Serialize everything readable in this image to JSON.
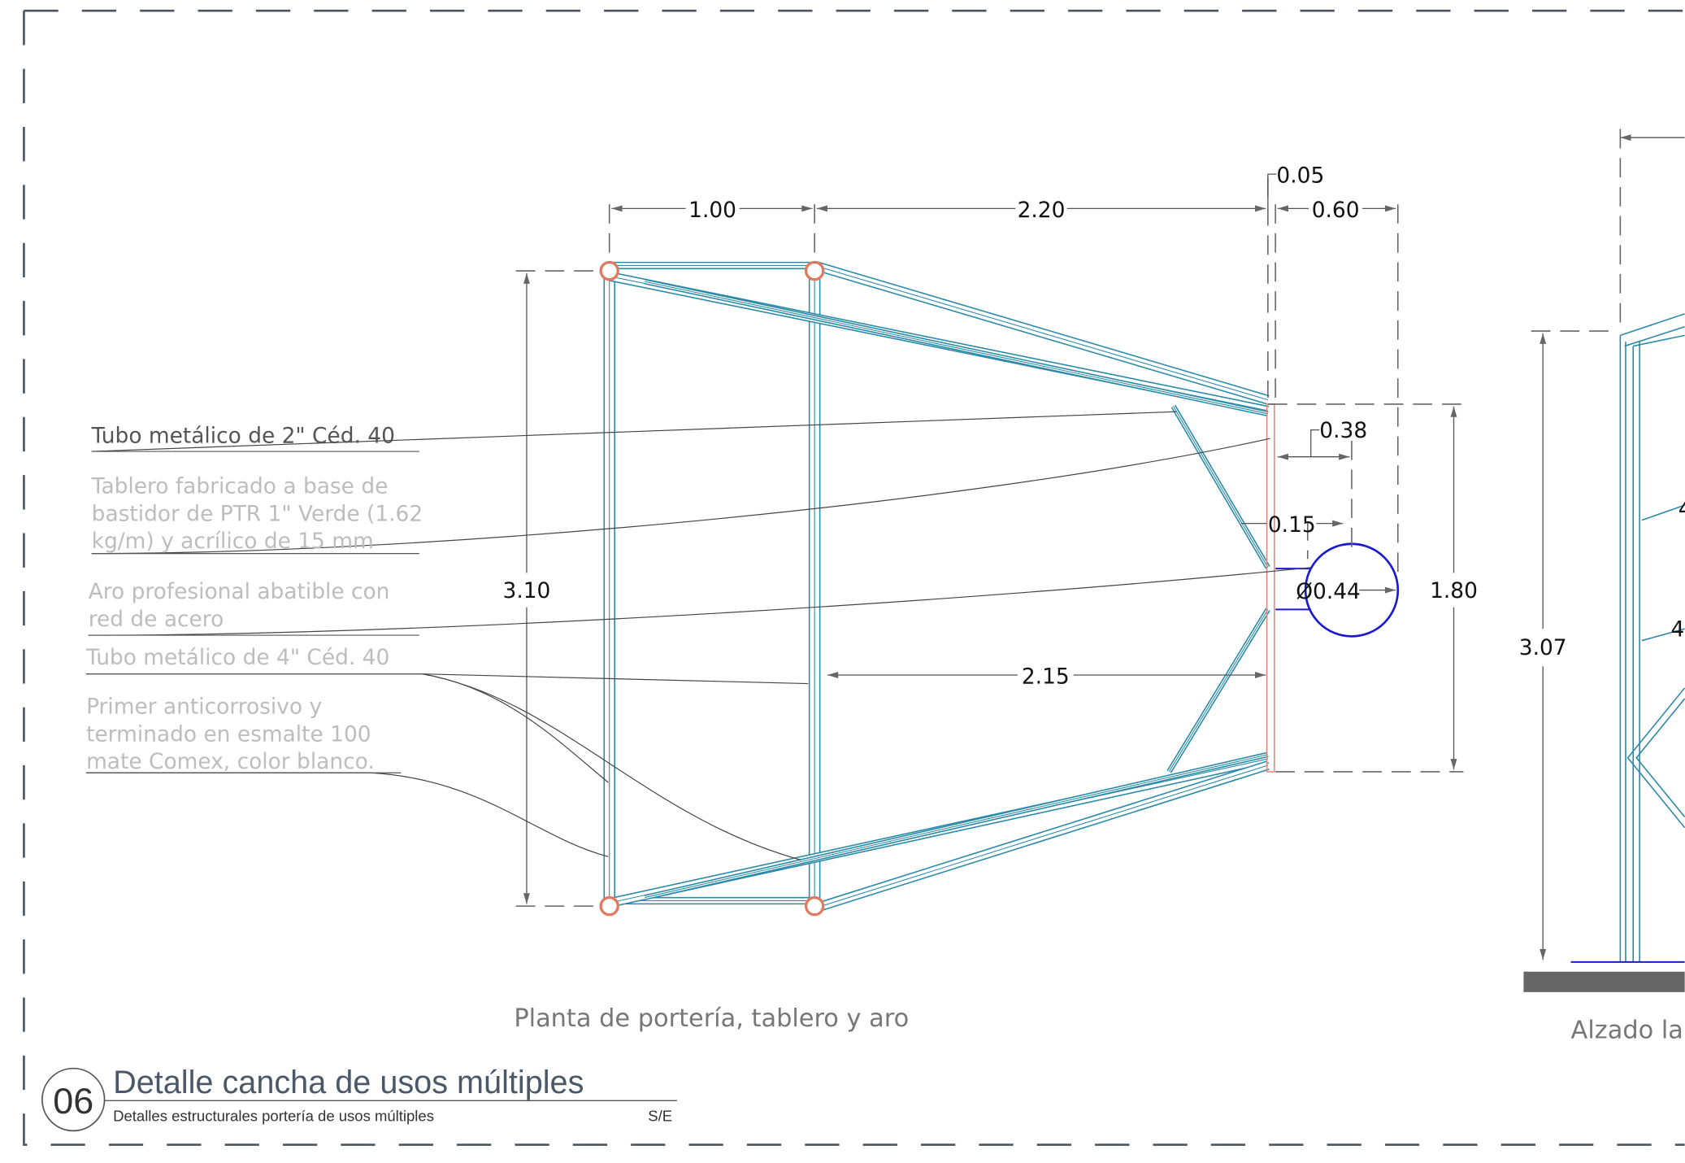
{
  "plan": {
    "caption": "Planta de portería, tablero y aro",
    "dimensions": {
      "d1": "1.00",
      "d2": "2.20",
      "d3": "0.05",
      "d4": "0.60",
      "d5": "0.38",
      "d6": "0.15",
      "d7": "Ø0.44",
      "d8": "1.80",
      "d9": "3.10",
      "d10": "2.15"
    },
    "annotations": [
      {
        "lines": [
          "Tubo metálico de 2\" Céd. 40"
        ]
      },
      {
        "lines": [
          "Tablero fabricado a base de",
          "bastidor de PTR 1\" Verde (1.62",
          "kg/m)  y acrílico de 15 mm"
        ]
      },
      {
        "lines": [
          "Aro profesional abatible con",
          "red de acero"
        ]
      },
      {
        "lines": [
          "Tubo metálico de 4\" Céd. 40"
        ]
      },
      {
        "lines": [
          "Primer anticorrosivo y",
          "terminado en esmalte 100",
          "mate Comex, color blanco."
        ]
      }
    ]
  },
  "elevation": {
    "caption": "Alzado la",
    "dimension": "3.07",
    "partial_labels": [
      "4",
      "4"
    ]
  },
  "title_block": {
    "number": "06",
    "title": "Detalle cancha de usos múltiples",
    "subtitle": "Detalles estructurales portería de usos múltiples",
    "scale": "S/E"
  }
}
